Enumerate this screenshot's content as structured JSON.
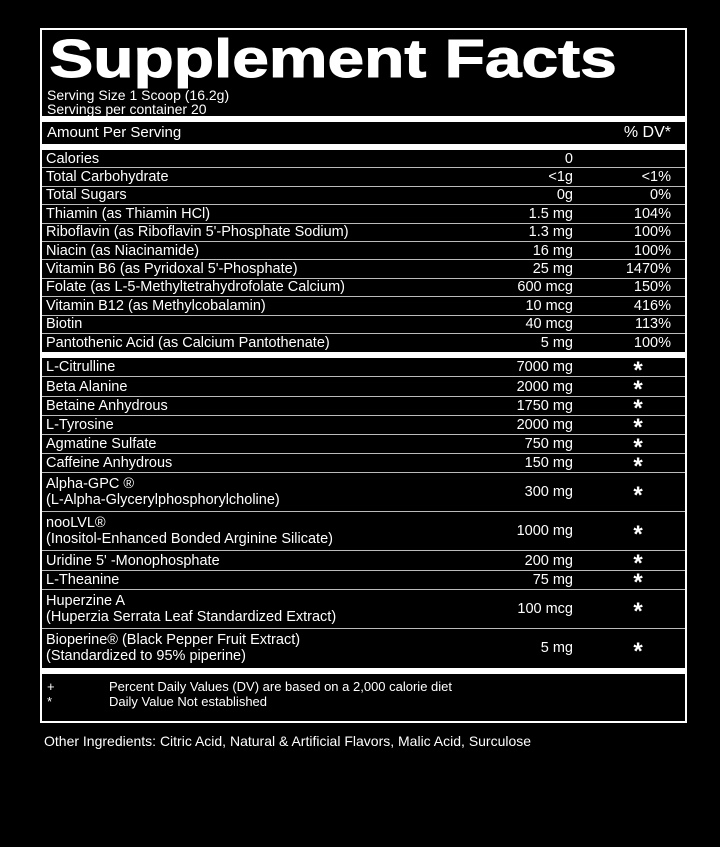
{
  "title": "Supplement Facts",
  "serving_size": "Serving Size 1 Scoop (16.2g)",
  "servings_per_container": "Servings per container 20",
  "header": {
    "amount": "Amount Per Serving",
    "dv": "% DV*"
  },
  "nutrients": [
    {
      "name": "Calories",
      "amount": "0",
      "dv": ""
    },
    {
      "name": "Total Carbohydrate",
      "amount": "<1g",
      "dv": "<1%"
    },
    {
      "name": "Total Sugars",
      "amount": "0g",
      "dv": "0%"
    },
    {
      "name": "Thiamin (as Thiamin HCl)",
      "amount": "1.5 mg",
      "dv": "104%"
    },
    {
      "name": "Riboflavin (as Riboflavin 5'-Phosphate Sodium)",
      "amount": "1.3 mg",
      "dv": "100%"
    },
    {
      "name": "Niacin (as Niacinamide)",
      "amount": "16 mg",
      "dv": "100%"
    },
    {
      "name": "Vitamin B6 (as Pyridoxal 5'-Phosphate)",
      "amount": "25 mg",
      "dv": "1470%"
    },
    {
      "name": "Folate (as L-5-Methyltetrahydrofolate Calcium)",
      "amount": "600 mcg",
      "dv": "150%"
    },
    {
      "name": "Vitamin B12 (as Methylcobalamin)",
      "amount": "10 mcg",
      "dv": "416%"
    },
    {
      "name": "Biotin",
      "amount": "40 mcg",
      "dv": "113%"
    },
    {
      "name": "Pantothenic Acid (as Calcium Pantothenate)",
      "amount": "5 mg",
      "dv": "100%"
    }
  ],
  "ingredients": [
    {
      "name": "L-Citrulline",
      "sub": "",
      "amount": "7000 mg",
      "dv": "*"
    },
    {
      "name": "Beta Alanine",
      "sub": "",
      "amount": "2000 mg",
      "dv": "*"
    },
    {
      "name": "Betaine Anhydrous",
      "sub": "",
      "amount": "1750 mg",
      "dv": "*"
    },
    {
      "name": "L-Tyrosine",
      "sub": "",
      "amount": "2000 mg",
      "dv": "*"
    },
    {
      "name": "Agmatine Sulfate",
      "sub": "",
      "amount": "750 mg",
      "dv": "*"
    },
    {
      "name": "Caffeine Anhydrous",
      "sub": "",
      "amount": "150 mg",
      "dv": "*"
    },
    {
      "name": "Alpha-GPC ®",
      "sub": "(L-Alpha-Glycerylphosphorylcholine)",
      "amount": "300 mg",
      "dv": "*"
    },
    {
      "name": "nooLVL®",
      "sub": "(Inositol-Enhanced Bonded Arginine Silicate)",
      "amount": "1000 mg",
      "dv": "*"
    },
    {
      "name": "Uridine 5' -Monophosphate",
      "sub": "",
      "amount": "200 mg",
      "dv": "*"
    },
    {
      "name": "L-Theanine",
      "sub": "",
      "amount": "75 mg",
      "dv": "*"
    },
    {
      "name": "Huperzine A",
      "sub": "(Huperzia Serrata Leaf Standardized Extract)",
      "amount": "100 mcg",
      "dv": "*"
    },
    {
      "name": "Bioperine® (Black Pepper Fruit Extract)",
      "sub": "(Standardized to 95% piperine)",
      "amount": "5 mg",
      "dv": "*"
    }
  ],
  "footnotes": [
    {
      "symbol": "+",
      "text": "Percent Daily Values (DV) are based on a 2,000 calorie diet"
    },
    {
      "symbol": "*",
      "text": "Daily Value Not established"
    }
  ],
  "other_ingredients": "Other Ingredients: Citric Acid, Natural & Artificial Flavors, Malic Acid, Surculose"
}
